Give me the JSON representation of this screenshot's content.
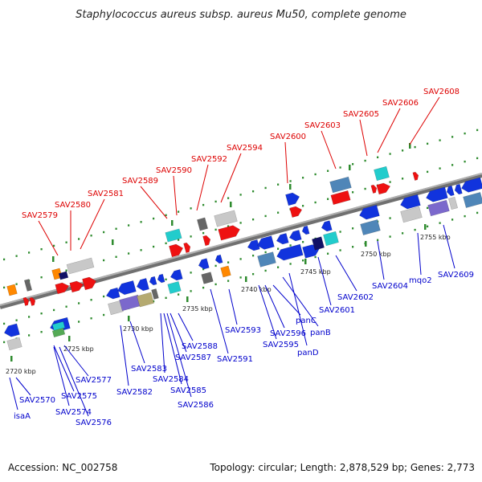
{
  "title": "Staphylococcus aureus subsp. aureus Mu50, complete genome",
  "footer": {
    "accession": "Accession: NC_002758",
    "summary": "Topology: circular; Length: 2,878,529 bp; Genes: 2,773"
  },
  "scale_ticks": [
    "2720 kbp",
    "2725 kbp",
    "2730 kbp",
    "2735 kbp",
    "2740 kbp",
    "2745 kbp",
    "2750 kbp",
    "2755 kbp"
  ],
  "labels_upper": [
    "SAV2579",
    "SAV2580",
    "SAV2581",
    "SAV2589",
    "SAV2590",
    "SAV2592",
    "SAV2594",
    "SAV2600",
    "SAV2603",
    "SAV2605",
    "SAV2606",
    "SAV2608"
  ],
  "labels_lower": [
    "isaA",
    "SAV2570",
    "SAV2575",
    "SAV2574",
    "SAV2576",
    "SAV2577",
    "SAV2582",
    "SAV2583",
    "SAV2584",
    "SAV2585",
    "SAV2586",
    "SAV2587",
    "SAV2588",
    "SAV2591",
    "SAV2593",
    "SAV2595",
    "SAV2596",
    "panC",
    "panB",
    "panD",
    "SAV2601",
    "SAV2602",
    "SAV2604",
    "mqo2",
    "SAV2609"
  ],
  "colors": {
    "backbone": "#888888",
    "upper_label": "#dd0000",
    "lower_label": "#0000cc",
    "track_dots": "#2e8b2e",
    "gene_red": "#ee1111",
    "gene_blue": "#1133dd",
    "gene_steel": "#4f86b8",
    "gene_cyan": "#22cccc",
    "gene_gray": "#c8c8c8",
    "gene_dark": "#666666",
    "gene_orange": "#ff8800",
    "gene_navy": "#111166",
    "gene_purple": "#7b68cc",
    "gene_olive": "#b5aa70",
    "gene_green": "#55aa55"
  }
}
